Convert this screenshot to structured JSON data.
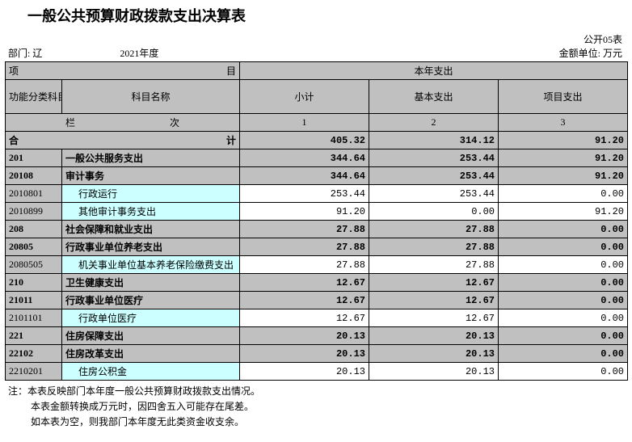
{
  "title": "一般公共预算财政拨款支出决算表",
  "form_code": "公开05表",
  "dept_label": "部门: 辽",
  "year_label": "2021年度",
  "unit_label": "金额单位: 万元",
  "headers": {
    "xiangmu_left": "项",
    "xiangmu_right": "目",
    "bennian": "本年支出",
    "code": "功能分类科目编码",
    "name": "科目名称",
    "xiaoji": "小计",
    "jiben": "基本支出",
    "xiangmu_expend": "项目支出",
    "lanci_left": "栏",
    "lanci_right": "次",
    "col1": "1",
    "col2": "2",
    "col3": "3",
    "heji_left": "合",
    "heji_right": "计"
  },
  "total": {
    "v1": "405.32",
    "v2": "314.12",
    "v3": "91.20"
  },
  "rows": [
    {
      "code": "201",
      "name": "一般公共服务支出",
      "v1": "344.64",
      "v2": "253.44",
      "v3": "91.20",
      "bold": true
    },
    {
      "code": "20108",
      "name": "审计事务",
      "v1": "344.64",
      "v2": "253.44",
      "v3": "91.20",
      "bold": true
    },
    {
      "code": "2010801",
      "name": "行政运行",
      "v1": "253.44",
      "v2": "253.44",
      "v3": "0.00",
      "leaf": true,
      "indent": 1
    },
    {
      "code": "2010899",
      "name": "其他审计事务支出",
      "v1": "91.20",
      "v2": "0.00",
      "v3": "91.20",
      "leaf": true,
      "indent": 1
    },
    {
      "code": "208",
      "name": "社会保障和就业支出",
      "v1": "27.88",
      "v2": "27.88",
      "v3": "0.00",
      "bold": true
    },
    {
      "code": "20805",
      "name": "行政事业单位养老支出",
      "v1": "27.88",
      "v2": "27.88",
      "v3": "0.00",
      "bold": true
    },
    {
      "code": "2080505",
      "name": "机关事业单位基本养老保险缴费支出",
      "v1": "27.88",
      "v2": "27.88",
      "v3": "0.00",
      "leaf": true,
      "indent": 1
    },
    {
      "code": "210",
      "name": "卫生健康支出",
      "v1": "12.67",
      "v2": "12.67",
      "v3": "0.00",
      "bold": true
    },
    {
      "code": "21011",
      "name": "行政事业单位医疗",
      "v1": "12.67",
      "v2": "12.67",
      "v3": "0.00",
      "bold": true
    },
    {
      "code": "2101101",
      "name": "行政单位医疗",
      "v1": "12.67",
      "v2": "12.67",
      "v3": "0.00",
      "leaf": true,
      "indent": 1
    },
    {
      "code": "221",
      "name": "住房保障支出",
      "v1": "20.13",
      "v2": "20.13",
      "v3": "0.00",
      "bold": true
    },
    {
      "code": "22102",
      "name": "住房改革支出",
      "v1": "20.13",
      "v2": "20.13",
      "v3": "0.00",
      "bold": true
    },
    {
      "code": "2210201",
      "name": "住房公积金",
      "v1": "20.13",
      "v2": "20.13",
      "v3": "0.00",
      "leaf": true,
      "indent": 1
    }
  ],
  "notes": [
    "注：本表反映部门本年度一般公共预算财政拨款支出情况。",
    "本表金额转换成万元时，因四舍五入可能存在尾差。",
    "如本表为空，则我部门本年度无此类资金收支余。"
  ],
  "colors": {
    "header_bg": "#c0c0c0",
    "leaf_bg": "#ccffff",
    "border": "#000000",
    "text": "#000000",
    "background": "#ffffff"
  }
}
